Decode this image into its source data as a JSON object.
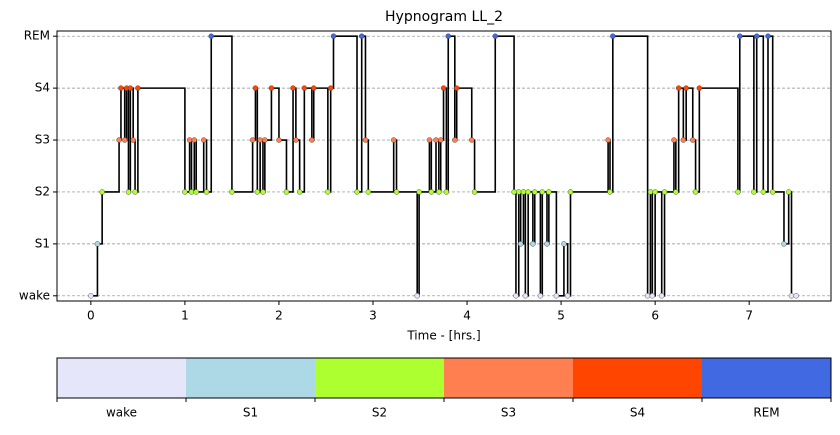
{
  "chart_data": {
    "type": "step",
    "title": "Hypnogram LL_2",
    "x_label": "Time - [hrs.]",
    "xlim": [
      -0.36,
      7.87
    ],
    "xticks": [
      0,
      1,
      2,
      3,
      4,
      5,
      6,
      7
    ],
    "ylim": [
      -0.1,
      5.1
    ],
    "yticks": [
      {
        "value": 0,
        "label": "wake"
      },
      {
        "value": 1,
        "label": "S1"
      },
      {
        "value": 2,
        "label": "S2"
      },
      {
        "value": 3,
        "label": "S3"
      },
      {
        "value": 4,
        "label": "S4"
      },
      {
        "value": 5,
        "label": "REM"
      }
    ],
    "grid": true,
    "line_color": "#000000",
    "x": [
      0.0,
      0.07,
      0.12,
      0.3,
      0.32,
      0.36,
      0.38,
      0.4,
      0.42,
      0.45,
      0.47,
      0.5,
      1.0,
      1.05,
      1.07,
      1.1,
      1.12,
      1.2,
      1.23,
      1.28,
      1.5,
      1.72,
      1.75,
      1.77,
      1.8,
      1.83,
      1.85,
      1.92,
      2.0,
      2.08,
      2.15,
      2.18,
      2.22,
      2.27,
      2.35,
      2.37,
      2.52,
      2.55,
      2.58,
      2.83,
      2.88,
      2.92,
      2.95,
      3.22,
      3.25,
      3.47,
      3.49,
      3.6,
      3.62,
      3.67,
      3.7,
      3.72,
      3.75,
      3.78,
      3.8,
      3.87,
      3.89,
      4.05,
      4.08,
      4.3,
      4.5,
      4.52,
      4.55,
      4.57,
      4.6,
      4.62,
      4.65,
      4.7,
      4.72,
      4.78,
      4.8,
      4.85,
      4.87,
      4.95,
      5.03,
      5.07,
      5.1,
      5.5,
      5.52,
      5.55,
      5.92,
      5.95,
      5.97,
      6.0,
      6.07,
      6.1,
      6.2,
      6.22,
      6.25,
      6.3,
      6.33,
      6.4,
      6.43,
      6.47,
      6.88,
      6.9,
      7.05,
      7.08,
      7.15,
      7.2,
      7.25,
      7.37,
      7.42,
      7.45,
      7.5
    ],
    "values": [
      0,
      1,
      2,
      3,
      4,
      3,
      4,
      2,
      4,
      3,
      2,
      4,
      2,
      3,
      2,
      3,
      2,
      3,
      2,
      5,
      2,
      3,
      4,
      2,
      3,
      2,
      3,
      4,
      3,
      2,
      4,
      3,
      2,
      4,
      3,
      4,
      2,
      4,
      5,
      2,
      5,
      3,
      2,
      3,
      2,
      0,
      2,
      3,
      2,
      3,
      2,
      3,
      4,
      2,
      5,
      3,
      4,
      3,
      2,
      5,
      2,
      0,
      2,
      1,
      2,
      0,
      2,
      1,
      2,
      0,
      2,
      1,
      2,
      0,
      1,
      0,
      2,
      3,
      2,
      5,
      0,
      2,
      0,
      2,
      0,
      2,
      3,
      2,
      4,
      3,
      4,
      3,
      2,
      4,
      2,
      5,
      2,
      5,
      2,
      5,
      2,
      1,
      2,
      0,
      0
    ],
    "colorbar": {
      "labels": [
        "wake",
        "S1",
        "S2",
        "S3",
        "S4",
        "REM"
      ],
      "colors": [
        "#e6e6fa",
        "#add8e6",
        "#adff2f",
        "#ff7f50",
        "#ff4500",
        "#4169e1"
      ]
    }
  }
}
